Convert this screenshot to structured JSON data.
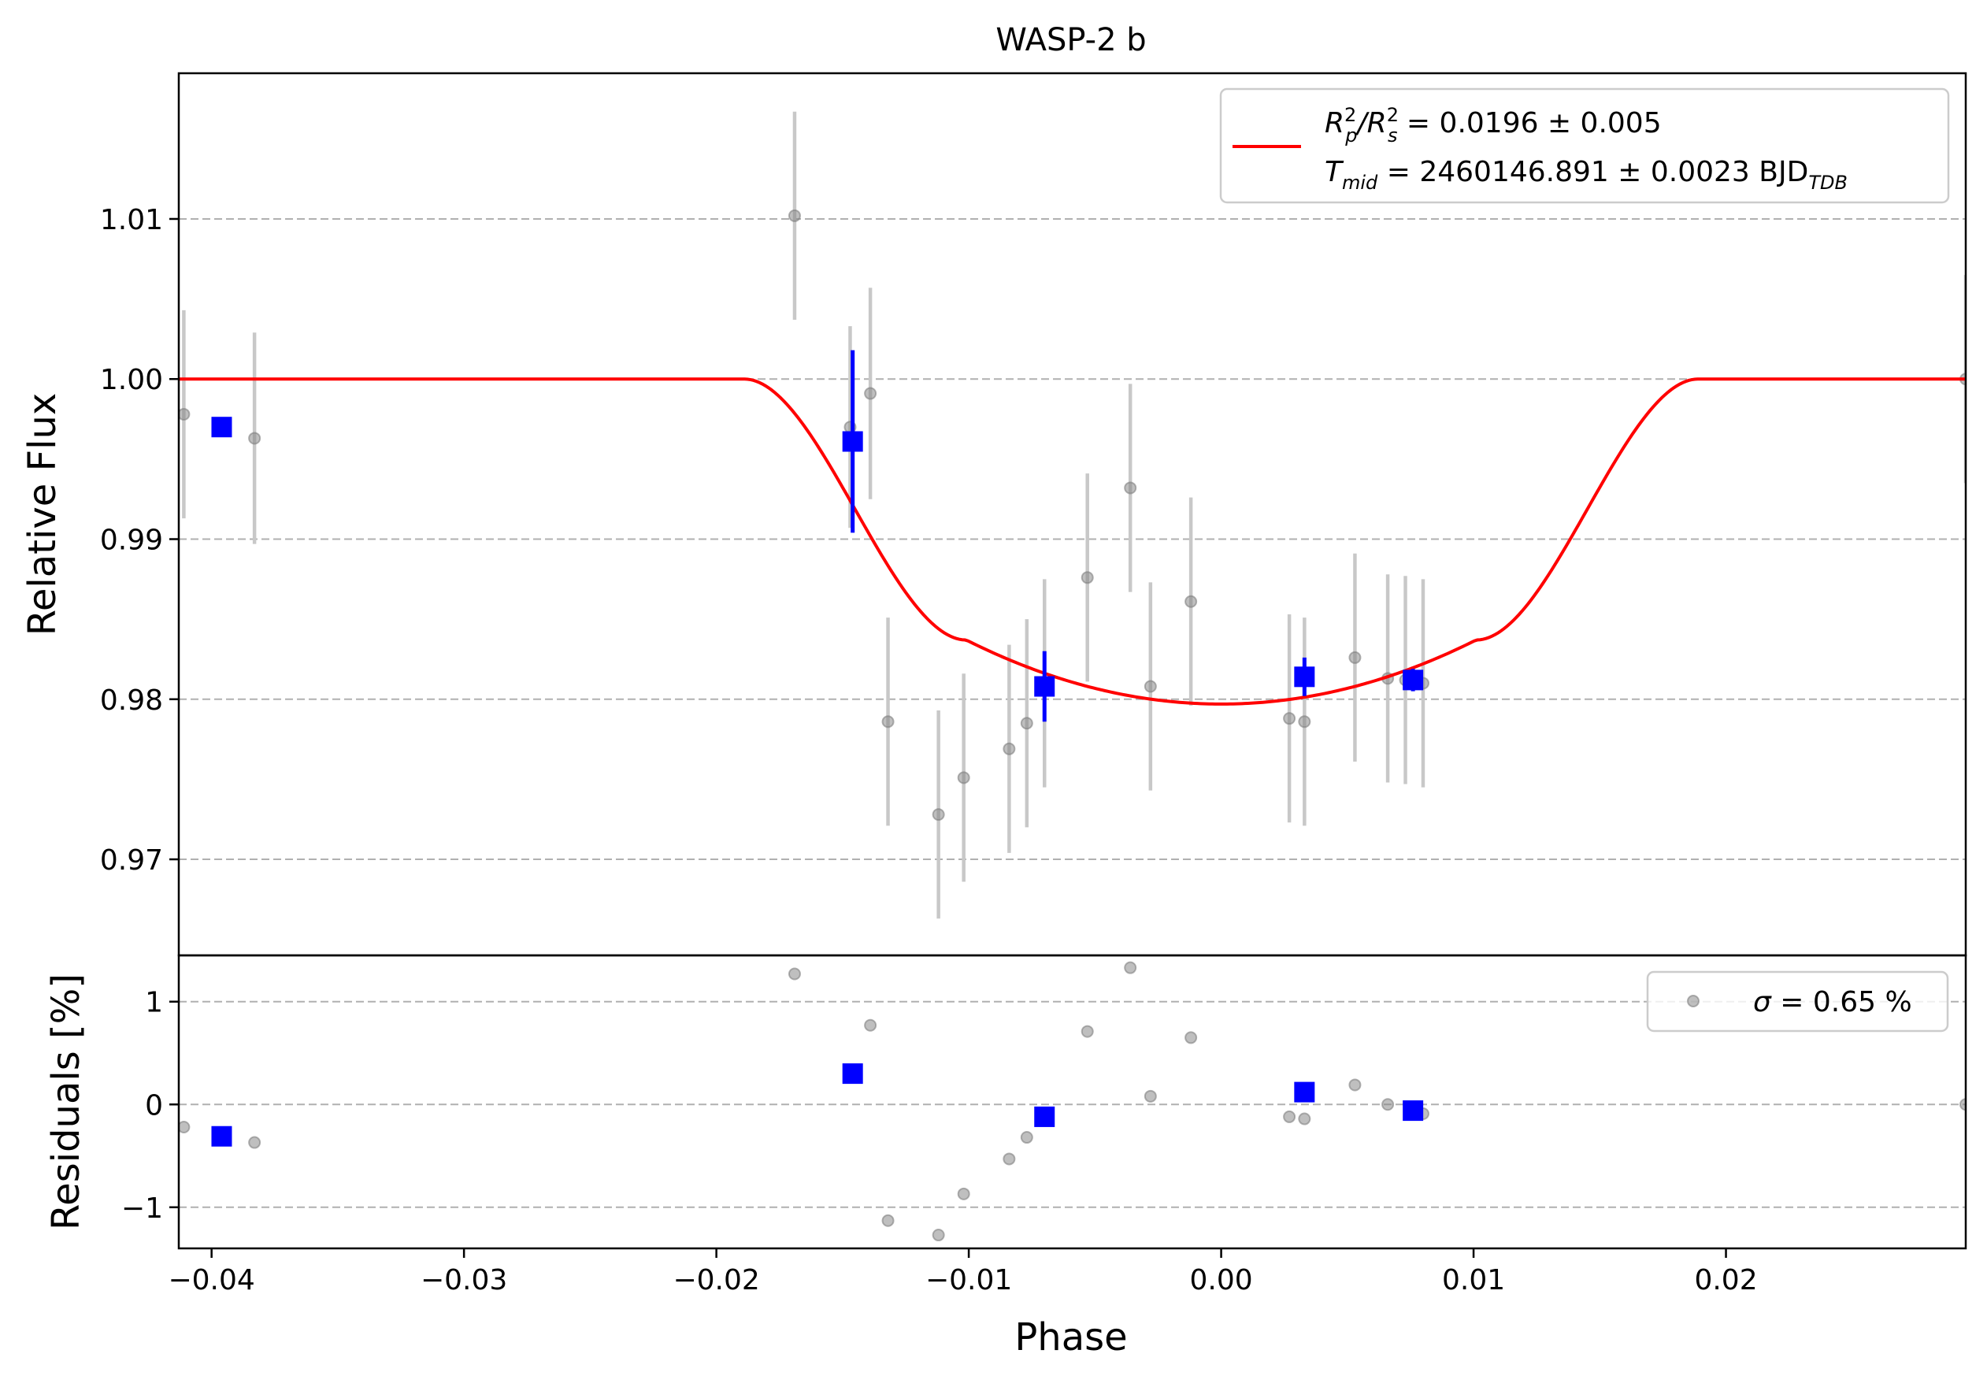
{
  "chart_data": {
    "type": "scatter",
    "title": "WASP-2 b",
    "xlabel": "Phase",
    "xlim": [
      -0.0413,
      0.0295
    ],
    "x_ticks": [
      -0.04,
      -0.03,
      -0.02,
      -0.01,
      0.0,
      0.01,
      0.02
    ],
    "x_tick_labels": [
      "−0.04",
      "−0.03",
      "−0.02",
      "−0.01",
      "0.00",
      "0.01",
      "0.02"
    ],
    "grid": "horizontal dashed",
    "colors": {
      "model": "#ff0000",
      "binned": "#0000ff",
      "unbinned": "#808080",
      "errorbar": "#c8c8c8"
    },
    "top_panel": {
      "ylabel": "Relative Flux",
      "ylim": [
        0.964,
        1.0191
      ],
      "y_ticks": [
        0.97,
        0.98,
        0.99,
        1.0,
        1.01
      ],
      "y_tick_labels": [
        "0.97",
        "0.98",
        "0.99",
        "1.00",
        "1.01"
      ],
      "legend": {
        "position": "upper right",
        "line1": {
          "main": "R",
          "sup1": "2",
          "sub1": "p",
          "mid": "/R",
          "sup2": "2",
          "sub2": "s",
          "rest": " = 0.0196 ± 0.005"
        },
        "line2": {
          "main": "T",
          "sub1": "mid",
          "rest": " = 2460146.891 ± 0.0023 BJD",
          "sub2": "TDB"
        }
      },
      "model": {
        "name": "transit model",
        "rp_rs_sq": 0.0196,
        "t_mid_bjd_tdb": 2460146.891,
        "depth_at_center": 0.0203,
        "depth_at_contact2": 0.0163,
        "contact1": -0.0189,
        "contact2": -0.0101,
        "contact3": 0.0101,
        "contact4": 0.0189
      },
      "unbinned": [
        {
          "x": -0.0411,
          "y": 0.9978,
          "err": 0.0065
        },
        {
          "x": -0.0383,
          "y": 0.9963,
          "err": 0.0066
        },
        {
          "x": -0.0169,
          "y": 1.0102,
          "err": 0.0065
        },
        {
          "x": -0.0147,
          "y": 0.997,
          "err": 0.0063
        },
        {
          "x": -0.0139,
          "y": 0.9991,
          "err": 0.0066
        },
        {
          "x": -0.0132,
          "y": 0.9786,
          "err": 0.0065
        },
        {
          "x": -0.0112,
          "y": 0.9728,
          "err": 0.0065
        },
        {
          "x": -0.0102,
          "y": 0.9751,
          "err": 0.0065
        },
        {
          "x": -0.0084,
          "y": 0.9769,
          "err": 0.0065
        },
        {
          "x": -0.0077,
          "y": 0.9785,
          "err": 0.0065
        },
        {
          "x": -0.007,
          "y": 0.981,
          "err": 0.0065
        },
        {
          "x": -0.0053,
          "y": 0.9876,
          "err": 0.0065
        },
        {
          "x": -0.0036,
          "y": 0.9932,
          "err": 0.0065
        },
        {
          "x": -0.0028,
          "y": 0.9808,
          "err": 0.0065
        },
        {
          "x": -0.0012,
          "y": 0.9861,
          "err": 0.0065
        },
        {
          "x": 0.0027,
          "y": 0.9788,
          "err": 0.0065
        },
        {
          "x": 0.0033,
          "y": 0.9786,
          "err": 0.0065
        },
        {
          "x": 0.0053,
          "y": 0.9826,
          "err": 0.0065
        },
        {
          "x": 0.0066,
          "y": 0.9813,
          "err": 0.0065
        },
        {
          "x": 0.0073,
          "y": 0.9812,
          "err": 0.0065
        },
        {
          "x": 0.008,
          "y": 0.981,
          "err": 0.0065
        },
        {
          "x": 0.0295,
          "y": 1.0,
          "err": 0.0065
        }
      ],
      "binned": [
        {
          "x": -0.0396,
          "y": 0.997,
          "err": 0.0
        },
        {
          "x": -0.0146,
          "y": 0.9961,
          "err": 0.0057
        },
        {
          "x": -0.007,
          "y": 0.9808,
          "err": 0.0022
        },
        {
          "x": 0.0033,
          "y": 0.9814,
          "err": 0.0012
        },
        {
          "x": 0.0076,
          "y": 0.9812,
          "err": 0.0007
        }
      ]
    },
    "bottom_panel": {
      "ylabel": "Residuals [%]",
      "ylim": [
        -1.4,
        1.45
      ],
      "y_ticks": [
        -1,
        0,
        1
      ],
      "y_tick_labels": [
        "−1",
        "0",
        "1"
      ],
      "legend": {
        "position": "upper right",
        "label": " = 0.65 %",
        "symbol": "σ"
      },
      "unbinned": [
        {
          "x": -0.0411,
          "y": -0.22
        },
        {
          "x": -0.0383,
          "y": -0.37
        },
        {
          "x": -0.0169,
          "y": 1.27
        },
        {
          "x": -0.0139,
          "y": 0.77
        },
        {
          "x": -0.0132,
          "y": -1.13
        },
        {
          "x": -0.0112,
          "y": -1.27
        },
        {
          "x": -0.0102,
          "y": -0.87
        },
        {
          "x": -0.0084,
          "y": -0.53
        },
        {
          "x": -0.0077,
          "y": -0.32
        },
        {
          "x": -0.0053,
          "y": 0.71
        },
        {
          "x": -0.0036,
          "y": 1.33
        },
        {
          "x": -0.0028,
          "y": 0.08
        },
        {
          "x": -0.0012,
          "y": 0.65
        },
        {
          "x": 0.0027,
          "y": -0.12
        },
        {
          "x": 0.0033,
          "y": -0.14
        },
        {
          "x": 0.0053,
          "y": 0.19
        },
        {
          "x": 0.0066,
          "y": 0.0
        },
        {
          "x": 0.008,
          "y": -0.09
        },
        {
          "x": 0.0295,
          "y": 0.0
        }
      ],
      "binned": [
        {
          "x": -0.0396,
          "y": -0.31
        },
        {
          "x": -0.0146,
          "y": 0.3
        },
        {
          "x": -0.007,
          "y": -0.12
        },
        {
          "x": 0.0033,
          "y": 0.12
        },
        {
          "x": 0.0076,
          "y": -0.06
        }
      ]
    }
  }
}
